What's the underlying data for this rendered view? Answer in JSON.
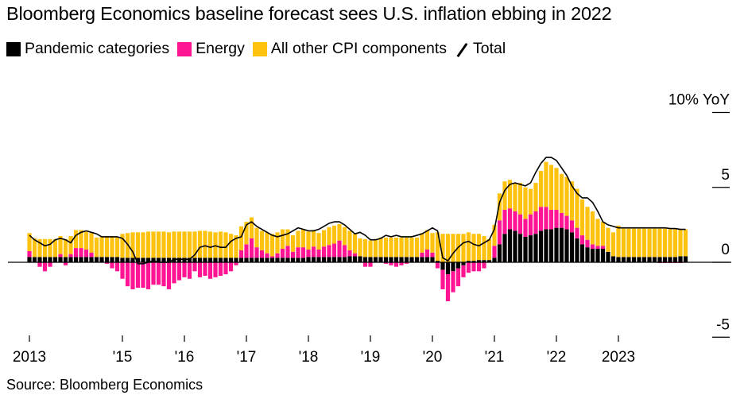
{
  "chart_data": {
    "type": "bar",
    "stacked": true,
    "title": "Bloomberg Economics baseline forecast sees U.S. inflation ebbing in 2022",
    "source": "Source: Bloomberg Economics",
    "ylabel": "10% YoY",
    "ylim": [
      -5,
      10
    ],
    "yticks": [
      {
        "value": 10,
        "label": "10% YoY"
      },
      {
        "value": 5,
        "label": "5"
      },
      {
        "value": 0,
        "label": "0"
      },
      {
        "value": -5,
        "label": "-5"
      }
    ],
    "xticks": [
      {
        "index": 0,
        "label": "2013"
      },
      {
        "index": 18,
        "label": "'15"
      },
      {
        "index": 30,
        "label": "'16"
      },
      {
        "index": 42,
        "label": "'17"
      },
      {
        "index": 54,
        "label": "'18"
      },
      {
        "index": 66,
        "label": "'19"
      },
      {
        "index": 78,
        "label": "'20"
      },
      {
        "index": 90,
        "label": "'21"
      },
      {
        "index": 102,
        "label": "'22"
      },
      {
        "index": 114,
        "label": "2023"
      }
    ],
    "legend": [
      {
        "name": "Pandemic categories",
        "color": "#000000",
        "kind": "box"
      },
      {
        "name": "Energy",
        "color": "#ff1493",
        "kind": "box"
      },
      {
        "name": "All other CPI components",
        "color": "#ffc20e",
        "kind": "box"
      },
      {
        "name": "Total",
        "color": "#000000",
        "kind": "line"
      }
    ],
    "legend_position": "top-left",
    "grid": false,
    "series": [
      {
        "name": "Pandemic categories",
        "color": "#000000",
        "values": [
          0.35,
          0.35,
          0.35,
          0.35,
          0.35,
          0.35,
          0.35,
          0.35,
          0.35,
          0.35,
          0.35,
          0.35,
          0.35,
          0.35,
          0.35,
          0.35,
          0.35,
          0.35,
          0.3,
          0.3,
          0.3,
          0.3,
          0.3,
          0.3,
          0.3,
          0.3,
          0.3,
          0.3,
          0.3,
          0.3,
          0.3,
          0.3,
          0.3,
          0.3,
          0.3,
          0.3,
          0.3,
          0.3,
          0.3,
          0.3,
          0.3,
          0.3,
          0.3,
          0.3,
          0.3,
          0.3,
          0.3,
          0.3,
          0.3,
          0.3,
          0.3,
          0.3,
          0.3,
          0.3,
          0.35,
          0.35,
          0.35,
          0.35,
          0.35,
          0.35,
          0.35,
          0.35,
          0.4,
          0.4,
          0.4,
          0.35,
          0.35,
          0.35,
          0.35,
          0.35,
          0.35,
          0.35,
          0.35,
          0.35,
          0.35,
          0.35,
          0.35,
          0.35,
          0.35,
          0.1,
          -0.5,
          -0.8,
          -0.6,
          -0.4,
          -0.2,
          0.1,
          0.1,
          0.15,
          0.15,
          0.15,
          0.3,
          1.2,
          1.9,
          2.2,
          2.1,
          1.9,
          1.7,
          1.8,
          1.9,
          2.1,
          2.2,
          2.2,
          2.3,
          2.3,
          2.2,
          2.0,
          1.6,
          1.2,
          1.0,
          0.9,
          0.9,
          0.9,
          0.7,
          0.4,
          0.35,
          0.35,
          0.35,
          0.35,
          0.35,
          0.35,
          0.35,
          0.35,
          0.35,
          0.35,
          0.35,
          0.35,
          0.4,
          0.4
        ]
      },
      {
        "name": "Energy",
        "color": "#ff1493",
        "values": [
          0.4,
          0.0,
          -0.3,
          -0.6,
          -0.3,
          0.0,
          0.2,
          -0.2,
          0.2,
          0.6,
          0.6,
          0.5,
          0.3,
          0.0,
          0.0,
          -0.1,
          -0.4,
          -0.6,
          -1.1,
          -1.6,
          -1.8,
          -1.7,
          -1.7,
          -1.8,
          -1.5,
          -1.5,
          -1.6,
          -1.8,
          -1.4,
          -1.2,
          -1.0,
          -1.1,
          -0.6,
          -1.0,
          -0.9,
          -1.1,
          -1.0,
          -0.9,
          -0.8,
          -0.6,
          -0.2,
          0.5,
          0.9,
          1.3,
          0.7,
          0.5,
          0.3,
          0.1,
          0.3,
          0.6,
          0.8,
          0.4,
          0.7,
          0.7,
          0.5,
          0.7,
          0.5,
          0.7,
          0.8,
          0.9,
          1.1,
          0.8,
          0.4,
          0.2,
          0.0,
          -0.3,
          -0.3,
          0.0,
          0.0,
          -0.1,
          -0.2,
          -0.3,
          -0.2,
          -0.1,
          0.0,
          0.0,
          0.3,
          0.5,
          0.3,
          -0.4,
          -1.3,
          -1.8,
          -1.4,
          -1.2,
          -0.8,
          -0.7,
          -0.6,
          -0.6,
          -0.4,
          0.0,
          0.8,
          1.6,
          1.6,
          1.4,
          1.3,
          1.3,
          1.2,
          1.4,
          1.5,
          1.6,
          1.5,
          1.3,
          1.2,
          1.0,
          0.9,
          0.8,
          0.7,
          0.6,
          0.5,
          0.3,
          0.2,
          0.2,
          0.0,
          0.0,
          0.0,
          0.0,
          0.0,
          0.0,
          0.0,
          0.0,
          0.0,
          0.0,
          -0.05,
          -0.05,
          -0.05,
          -0.05,
          -0.05,
          0.0
        ]
      },
      {
        "name": "All other CPI components",
        "color": "#ffc20e",
        "values": [
          1.2,
          1.25,
          1.2,
          1.2,
          1.2,
          1.2,
          1.2,
          1.2,
          1.2,
          1.2,
          1.2,
          1.25,
          1.3,
          1.3,
          1.35,
          1.4,
          1.4,
          1.35,
          1.6,
          1.65,
          1.7,
          1.7,
          1.7,
          1.75,
          1.75,
          1.75,
          1.75,
          1.7,
          1.75,
          1.75,
          1.75,
          1.75,
          1.75,
          1.8,
          1.8,
          1.75,
          1.7,
          1.75,
          1.7,
          1.6,
          1.5,
          1.6,
          1.5,
          1.4,
          1.3,
          1.3,
          1.4,
          1.5,
          1.4,
          1.3,
          1.1,
          1.1,
          1.1,
          1.2,
          1.2,
          1.1,
          1.1,
          1.1,
          1.2,
          1.2,
          1.1,
          1.2,
          1.3,
          1.3,
          1.2,
          1.2,
          1.1,
          1.2,
          1.3,
          1.3,
          1.3,
          1.3,
          1.3,
          1.3,
          1.3,
          1.3,
          1.3,
          1.3,
          1.3,
          1.9,
          1.9,
          1.9,
          1.9,
          1.9,
          1.9,
          1.9,
          1.8,
          1.75,
          1.6,
          1.4,
          1.4,
          1.8,
          1.9,
          1.9,
          1.9,
          2.1,
          2.1,
          1.7,
          1.9,
          2.4,
          3.0,
          3.0,
          2.8,
          2.6,
          2.6,
          2.6,
          2.6,
          2.4,
          2.2,
          2.2,
          1.8,
          1.6,
          1.6,
          1.6,
          2.1,
          1.9,
          1.9,
          1.9,
          1.9,
          1.9,
          1.9,
          1.9,
          1.9,
          1.9,
          1.85,
          1.85,
          1.8,
          1.8
        ]
      },
      {
        "name": "Total",
        "color": "#000000",
        "kind": "line",
        "values": [
          1.8,
          1.5,
          1.3,
          1.1,
          1.2,
          1.5,
          1.6,
          1.5,
          1.3,
          1.8,
          2.0,
          2.1,
          2.0,
          1.9,
          1.7,
          1.7,
          1.7,
          1.7,
          1.6,
          1.2,
          0.7,
          -0.1,
          -0.1,
          0.0,
          0.1,
          0.0,
          0.0,
          0.0,
          0.2,
          0.2,
          0.2,
          0.2,
          0.5,
          1.0,
          1.1,
          1.0,
          1.1,
          1.0,
          1.0,
          1.4,
          1.6,
          1.7,
          2.5,
          2.7,
          2.4,
          2.2,
          2.0,
          1.8,
          1.7,
          1.8,
          1.9,
          2.1,
          2.3,
          2.2,
          2.1,
          2.1,
          2.2,
          2.4,
          2.6,
          2.7,
          2.7,
          2.5,
          2.2,
          1.9,
          2.0,
          1.8,
          1.5,
          1.5,
          1.6,
          1.8,
          1.7,
          1.8,
          1.7,
          1.7,
          1.7,
          1.8,
          1.9,
          2.1,
          2.3,
          2.1,
          0.3,
          0.1,
          0.6,
          1.0,
          1.3,
          1.4,
          1.2,
          1.1,
          1.3,
          1.5,
          2.2,
          4.0,
          4.8,
          5.2,
          5.3,
          5.2,
          5.1,
          5.3,
          6.0,
          6.6,
          7.0,
          7.0,
          6.8,
          6.3,
          5.8,
          5.1,
          4.6,
          4.3,
          4.3,
          4.0,
          3.4,
          2.7,
          2.5,
          2.4,
          2.3,
          2.3,
          2.3,
          2.3,
          2.3,
          2.3,
          2.3,
          2.3,
          2.3,
          2.3,
          2.25,
          2.25,
          2.2,
          2.2
        ]
      }
    ]
  }
}
